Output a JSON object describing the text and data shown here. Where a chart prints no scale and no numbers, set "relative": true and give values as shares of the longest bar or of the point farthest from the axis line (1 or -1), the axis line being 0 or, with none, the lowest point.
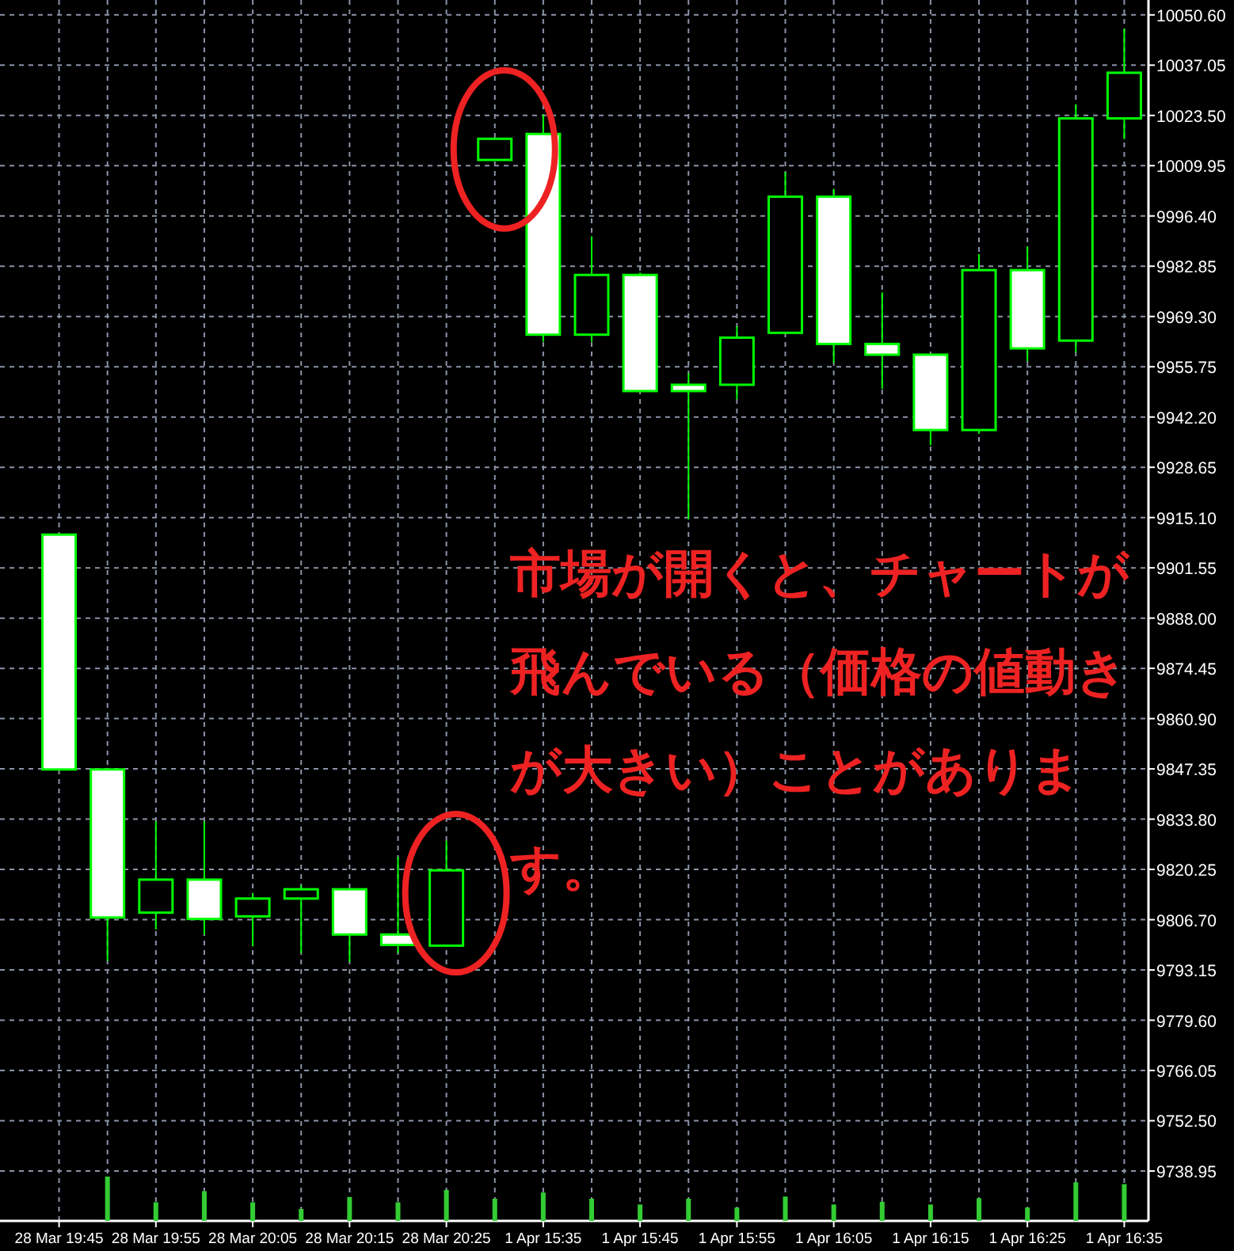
{
  "chart_data": [
    {
      "type": "candlestick",
      "categories": [
        "28 Mar 19:45",
        null,
        "28 Mar 19:55",
        null,
        "28 Mar 20:05",
        null,
        "28 Mar 20:15",
        null,
        "28 Mar 20:25",
        null,
        "1 Apr 15:35",
        null,
        "1 Apr 15:45",
        null,
        "1 Apr 15:55",
        null,
        "1 Apr 16:05",
        null,
        "1 Apr 16:15",
        null,
        "1 Apr 16:25",
        null,
        "1 Apr 16:35"
      ],
      "ohlc": [
        [
          9910.5,
          9910.5,
          9847.2,
          9847.2
        ],
        [
          9847.2,
          9847.2,
          9795.6,
          9807.3
        ],
        [
          9808.6,
          9833.2,
          9804.1,
          9817.5
        ],
        [
          9817.5,
          9833.2,
          9802.7,
          9806.9
        ],
        [
          9807.6,
          9813.9,
          9799.5,
          9812.4
        ],
        [
          9812.4,
          9816.0,
          9797.7,
          9814.9
        ],
        [
          9814.9,
          9814.9,
          9795.3,
          9802.7
        ],
        [
          9802.7,
          9823.6,
          9797.7,
          9799.9
        ],
        [
          9799.7,
          9828.0,
          9799.7,
          9820.0
        ],
        [
          10011.5,
          10017.2,
          10011.5,
          10017.2
        ],
        [
          10018.5,
          10023.7,
          9962.5,
          9964.4
        ],
        [
          9964.4,
          9990.9,
          9962.5,
          9980.5
        ],
        [
          9980.5,
          9981.1,
          9949.2,
          9949.2
        ],
        [
          9950.9,
          9954.0,
          9914.6,
          9949.2
        ],
        [
          9950.9,
          9966.7,
          9947.0,
          9963.6
        ],
        [
          9964.9,
          10008.2,
          9964.9,
          10001.6
        ],
        [
          10001.6,
          10003.7,
          9956.8,
          9961.9
        ],
        [
          9961.9,
          9975.8,
          9949.8,
          9959.0
        ],
        [
          9959.0,
          9959.0,
          9934.6,
          9938.7
        ],
        [
          9938.7,
          9986.1,
          9937.7,
          9981.8
        ],
        [
          9981.8,
          9988.2,
          9957.3,
          9960.7
        ],
        [
          9962.8,
          10026.5,
          9959.6,
          10022.7
        ],
        [
          10022.7,
          10046.9,
          10017.1,
          10035.0
        ]
      ],
      "color": "#00ff00",
      "colors": [
        "#ffffff",
        "#ffffff",
        "#000000",
        "#ffffff",
        "#000000",
        "#000000",
        "#ffffff",
        "#ffffff",
        "#000000",
        "#000000",
        "#ffffff",
        "#000000",
        "#ffffff",
        "#ffffff",
        "#000000",
        "#000000",
        "#ffffff",
        "#ffffff",
        "#ffffff",
        "#000000",
        "#ffffff",
        "#000000",
        "#000000"
      ],
      "ylim": [
        9725.5,
        10051.2
      ],
      "yticks": [
        9738.95,
        {
          "value": 9752.5,
          "label": "9752.50"
        },
        9766.05,
        {
          "value": 9779.6,
          "label": "9779.60"
        },
        9793.15,
        {
          "value": 9806.7,
          "label": "9806.70"
        },
        9820.25,
        {
          "value": 9833.8,
          "label": "9833.80"
        },
        9847.35,
        {
          "value": 9860.9,
          "label": "9860.90"
        },
        9874.45,
        {
          "value": 9888,
          "label": "9888.00"
        },
        9901.55,
        {
          "value": 9915.1,
          "label": "9915.10"
        },
        9928.65,
        {
          "value": 9942.2,
          "label": "9942.20"
        },
        9955.75,
        {
          "value": 9969.3,
          "label": "9969.30"
        },
        9982.85,
        {
          "value": 9996.4,
          "label": "9996.40"
        },
        10009.95,
        {
          "value": 10023.5,
          "label": "10023.50"
        },
        10037.05,
        {
          "value": 10050.6,
          "label": "10050.60"
        }
      ],
      "grid": true,
      "annotations": [
        "市場が開くと、チャートが飛んでいる（価格の値動きが大きい）ことがあります。"
      ]
    },
    {
      "type": "bar",
      "values": [
        null,
        1.0,
        0.42,
        0.67,
        0.42,
        0.27,
        0.54,
        0.42,
        0.7,
        0.5,
        0.64,
        0.5,
        0.37,
        0.5,
        0.3,
        0.55,
        0.37,
        0.43,
        0.37,
        0.51,
        0.3,
        0.87,
        0.83
      ],
      "color": "#33cc33",
      "relative": true
    }
  ]
}
